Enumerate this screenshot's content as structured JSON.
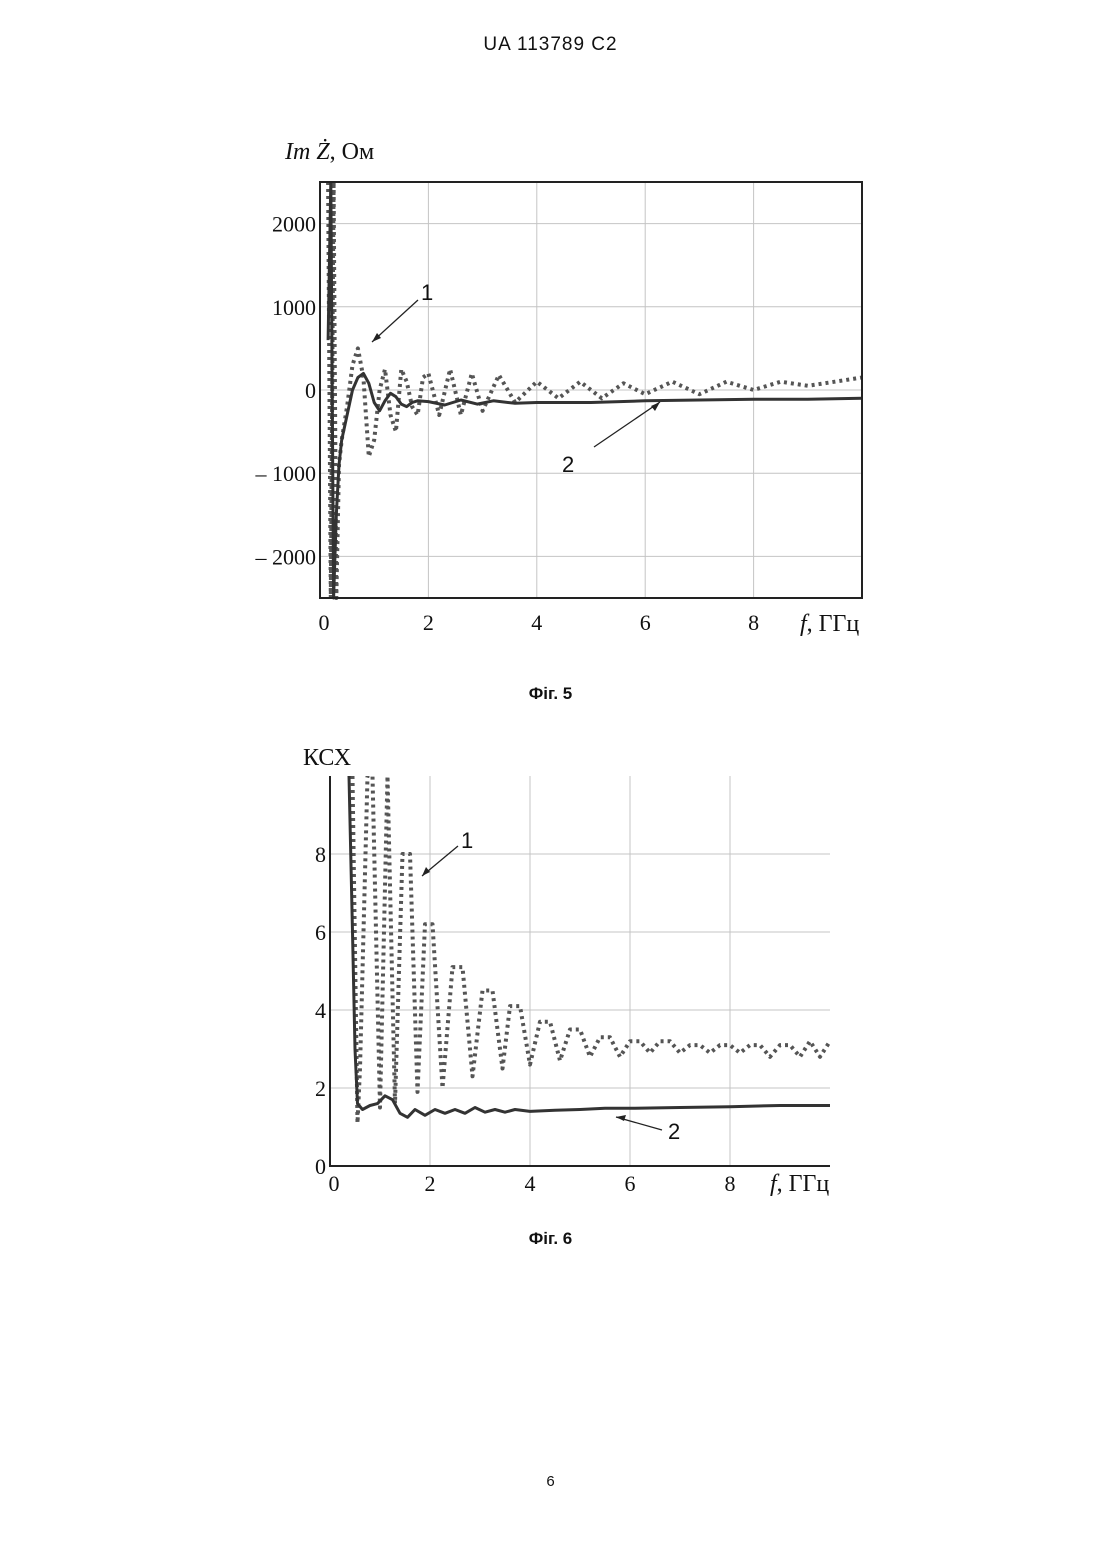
{
  "header": {
    "doc_number": "UA 113789 C2"
  },
  "page_number": "6",
  "chart_data": [
    {
      "type": "line",
      "caption": "Фіг. 5",
      "title": "",
      "ylabel_italic": "Im Ż",
      "ylabel_unit": ", Ом",
      "xlabel_italic": "f",
      "xlabel_unit": ", ГГц",
      "xlim": [
        0,
        10
      ],
      "ylim": [
        -2500,
        2500
      ],
      "x_ticks": [
        "0",
        "2",
        "4",
        "6",
        "8"
      ],
      "y_ticks": [
        "2000",
        "1000",
        "0",
        "– 1000",
        "– 2000"
      ],
      "y_tick_values": [
        2000,
        1000,
        0,
        -1000,
        -2000
      ],
      "grid": true,
      "annotations": [
        "1",
        "2"
      ],
      "series": [
        {
          "style": "dotted",
          "x": [
            0.15,
            0.2,
            0.25,
            0.3,
            0.35,
            0.4,
            0.5,
            0.6,
            0.7,
            0.8,
            0.9,
            1.0,
            1.1,
            1.2,
            1.3,
            1.4,
            1.5,
            1.6,
            1.7,
            1.8,
            1.9,
            2.0,
            2.2,
            2.4,
            2.6,
            2.8,
            3.0,
            3.3,
            3.6,
            4.0,
            4.4,
            4.8,
            5.2,
            5.6,
            6.0,
            6.5,
            7.0,
            7.5,
            8.0,
            8.5,
            9.0,
            9.5,
            10.0
          ],
          "y": [
            2500,
            -2500,
            2500,
            -2500,
            -900,
            -600,
            -200,
            300,
            500,
            150,
            -800,
            -600,
            0,
            250,
            -300,
            -500,
            250,
            100,
            -200,
            -300,
            150,
            200,
            -300,
            250,
            -300,
            200,
            -250,
            180,
            -150,
            100,
            -100,
            100,
            -100,
            80,
            -50,
            100,
            -50,
            100,
            0,
            100,
            50,
            100,
            150
          ]
        },
        {
          "style": "solid",
          "x": [
            0.15,
            0.2,
            0.25,
            0.3,
            0.35,
            0.4,
            0.5,
            0.6,
            0.7,
            0.8,
            0.9,
            1.0,
            1.1,
            1.2,
            1.3,
            1.4,
            1.5,
            1.6,
            1.7,
            1.8,
            2.0,
            2.3,
            2.6,
            2.9,
            3.2,
            3.6,
            4.0,
            5.0,
            6.0,
            7.0,
            8.0,
            9.0,
            10.0
          ],
          "y": [
            600,
            2500,
            -2500,
            -1500,
            -900,
            -600,
            -300,
            0,
            150,
            200,
            80,
            -150,
            -250,
            -130,
            -40,
            -80,
            -170,
            -200,
            -150,
            -130,
            -140,
            -180,
            -120,
            -170,
            -130,
            -160,
            -150,
            -150,
            -130,
            -120,
            -110,
            -110,
            -100
          ]
        }
      ]
    },
    {
      "type": "line",
      "caption": "Фіг. 6",
      "title": "",
      "ylabel": "КСХ",
      "xlabel_italic": "f",
      "xlabel_unit": ", ГГц",
      "xlim": [
        0,
        10
      ],
      "ylim": [
        0,
        10
      ],
      "x_ticks": [
        "0",
        "2",
        "4",
        "6",
        "8"
      ],
      "y_ticks": [
        "0",
        "2",
        "4",
        "6",
        "8"
      ],
      "y_tick_values": [
        0,
        2,
        4,
        6,
        8
      ],
      "grid": true,
      "annotations": [
        "1",
        "2"
      ],
      "series": [
        {
          "style": "dotted",
          "x": [
            0.45,
            0.55,
            0.6,
            0.75,
            0.85,
            1.0,
            1.15,
            1.3,
            1.45,
            1.6,
            1.75,
            1.9,
            2.05,
            2.25,
            2.45,
            2.65,
            2.85,
            3.05,
            3.25,
            3.45,
            3.6,
            3.8,
            4.0,
            4.2,
            4.4,
            4.6,
            4.8,
            5.0,
            5.2,
            5.4,
            5.6,
            5.8,
            6.0,
            6.2,
            6.4,
            6.6,
            6.8,
            7.0,
            7.2,
            7.4,
            7.6,
            7.8,
            8.0,
            8.2,
            8.4,
            8.6,
            8.8,
            9.0,
            9.2,
            9.4,
            9.6,
            9.8,
            10.0
          ],
          "y": [
            10,
            1.1,
            2.5,
            10,
            10,
            1.5,
            10,
            1.6,
            8,
            8,
            1.9,
            6.2,
            6.2,
            2.0,
            5.1,
            5.1,
            2.3,
            4.5,
            4.5,
            2.5,
            4.1,
            4.1,
            2.6,
            3.7,
            3.7,
            2.7,
            3.5,
            3.5,
            2.8,
            3.3,
            3.3,
            2.8,
            3.2,
            3.2,
            2.9,
            3.2,
            3.2,
            2.9,
            3.1,
            3.1,
            2.9,
            3.1,
            3.1,
            2.9,
            3.1,
            3.1,
            2.8,
            3.1,
            3.1,
            2.8,
            3.2,
            2.8,
            3.2
          ]
        },
        {
          "style": "solid",
          "x": [
            0.38,
            0.45,
            0.5,
            0.55,
            0.65,
            0.8,
            0.95,
            1.1,
            1.25,
            1.4,
            1.55,
            1.7,
            1.9,
            2.1,
            2.3,
            2.5,
            2.7,
            2.9,
            3.1,
            3.3,
            3.5,
            3.7,
            4.0,
            4.5,
            5.0,
            5.5,
            6.0,
            7.0,
            8.0,
            9.0,
            10.0
          ],
          "y": [
            10,
            6,
            3,
            1.6,
            1.45,
            1.55,
            1.6,
            1.8,
            1.7,
            1.35,
            1.25,
            1.45,
            1.3,
            1.45,
            1.35,
            1.45,
            1.35,
            1.5,
            1.38,
            1.45,
            1.38,
            1.45,
            1.4,
            1.43,
            1.45,
            1.48,
            1.48,
            1.5,
            1.52,
            1.55,
            1.55
          ]
        }
      ]
    }
  ]
}
